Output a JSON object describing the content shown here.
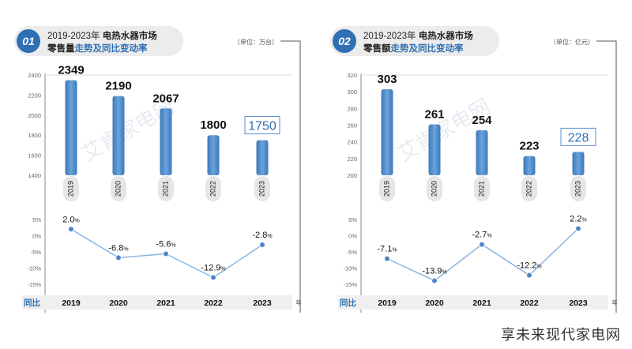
{
  "footer_text": "享未来现代家电网",
  "watermark_text": "艾肯家电网",
  "chart_data": [
    {
      "type": "bar",
      "badge": "01",
      "title_line1_prefix": "2019-2023年 ",
      "title_line1_highlight": "电热水器市场",
      "title_line2_highlight": "零售量",
      "title_line2_rest": "走势及同比变动率",
      "unit": "（单位：万台）",
      "categories": [
        "2019",
        "2020",
        "2021",
        "2022",
        "2023"
      ],
      "values": [
        2349,
        2190,
        2067,
        1800,
        1750
      ],
      "value_labels": [
        "2349",
        "2190",
        "2067",
        "1800",
        "1750"
      ],
      "ylim": [
        1400,
        2400
      ],
      "yticks": [
        "2400",
        "2200",
        "2000",
        "1800",
        "1600",
        "1400"
      ],
      "ytick_values": [
        2400,
        2200,
        2000,
        1800,
        1600,
        1400
      ],
      "highlight_index": 4,
      "yoy": {
        "type": "line",
        "label": "同比",
        "x_unit": "年",
        "values": [
          2.0,
          -6.8,
          -5.6,
          -12.9,
          -2.8
        ],
        "value_labels": [
          "2.0",
          "-6.8",
          "-5.6",
          "-12.9",
          "-2.8"
        ],
        "suffix": "%",
        "ylim": [
          -15,
          5
        ],
        "yticks": [
          "5%",
          "0%",
          "-5%",
          "-10%",
          "-15%"
        ],
        "ytick_values": [
          5,
          0,
          -5,
          -10,
          -15
        ]
      }
    },
    {
      "type": "bar",
      "badge": "02",
      "title_line1_prefix": "2019-2023年 ",
      "title_line1_highlight": "电热水器市场",
      "title_line2_highlight": "零售额",
      "title_line2_rest": "走势及同比变动率",
      "unit": "（单位：亿元）",
      "categories": [
        "2019",
        "2020",
        "2021",
        "2022",
        "2023"
      ],
      "values": [
        303,
        261,
        254,
        223,
        228
      ],
      "value_labels": [
        "303",
        "261",
        "254",
        "223",
        "228"
      ],
      "ylim": [
        200,
        320
      ],
      "yticks": [
        "320",
        "300",
        "280",
        "260",
        "240",
        "220",
        "200"
      ],
      "ytick_values": [
        320,
        300,
        280,
        260,
        240,
        220,
        200
      ],
      "highlight_index": 4,
      "yoy": {
        "type": "line",
        "label": "同比",
        "x_unit": "年",
        "values": [
          -7.1,
          -13.9,
          -2.7,
          -12.2,
          2.2
        ],
        "value_labels": [
          "-7.1",
          "-13.9",
          "-2.7",
          "-12.2",
          "2.2"
        ],
        "suffix": "%",
        "ylim": [
          -15,
          5
        ],
        "yticks": [
          "5%",
          "0%",
          "-5%",
          "-10%",
          "-15%"
        ],
        "ytick_values": [
          5,
          0,
          -5,
          -10,
          -15
        ]
      }
    }
  ]
}
